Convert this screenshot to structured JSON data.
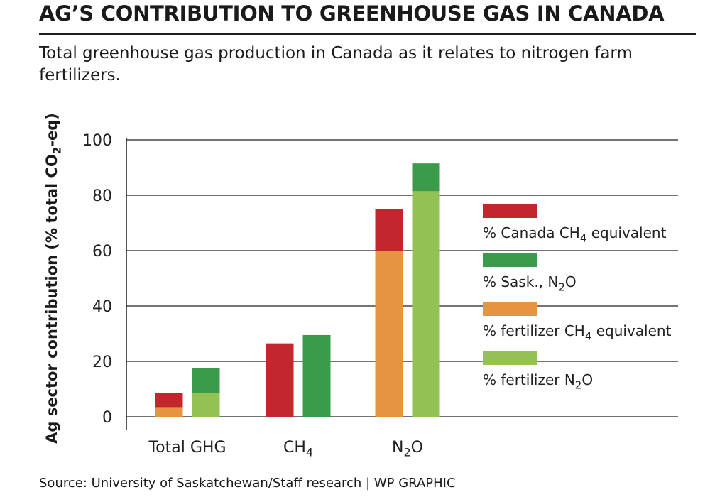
{
  "header": {
    "title": "AG’S CONTRIBUTION TO GREENHOUSE GAS IN CANADA",
    "subtitle": "Total greenhouse gas production in Canada as it relates to nitrogen farm fertilizers."
  },
  "footer": {
    "source": "Source: University of Saskatchewan/Staff research  |  WP GRAPHIC"
  },
  "colors": {
    "canada_ch4": "#c1272d",
    "sask_n2o": "#3a9b4a",
    "fertilizer_ch4": "#e69442",
    "fertilizer_n2o": "#94c153",
    "grid": "#231f20"
  },
  "chart_data": {
    "type": "bar",
    "ylabel": "Ag sector contribution (% total CO2-eq)",
    "ylim": [
      0,
      100
    ],
    "yticks": [
      0,
      20,
      40,
      60,
      80,
      100
    ],
    "grid": true,
    "legend_position": "right",
    "categories": [
      "Total GHG",
      "CH4",
      "N2O"
    ],
    "series": [
      {
        "name": "% Canada CH4 equivalent",
        "values": [
          8.5,
          26.5,
          75
        ]
      },
      {
        "name": "% Sask., N2O",
        "values": [
          17.5,
          29.5,
          91.5
        ]
      },
      {
        "name": "% fertilizer CH4 equivalent",
        "values": [
          3.5,
          0,
          60
        ]
      },
      {
        "name": "% fertilizer N2O",
        "values": [
          8.5,
          0,
          81.5
        ]
      }
    ]
  }
}
